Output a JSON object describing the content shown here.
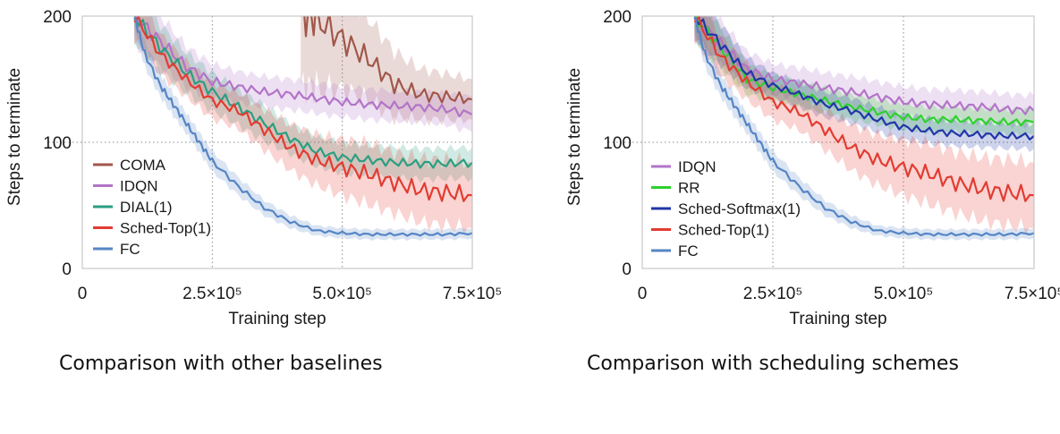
{
  "chart_data": [
    {
      "type": "line",
      "xlabel": "Training step",
      "ylabel": "Steps to terminate",
      "xlim": [
        0,
        750000
      ],
      "ylim": [
        0,
        200
      ],
      "xticks": [
        0,
        250000,
        500000,
        750000
      ],
      "xtick_labels": [
        "0",
        "2.5×10⁵",
        "5.0×10⁵",
        "7.5×10⁵"
      ],
      "yticks": [
        0,
        100,
        200
      ],
      "ytick_labels": [
        "0",
        "100",
        "200"
      ],
      "reference_lines": {
        "x": [
          250000,
          500000
        ],
        "y": [
          100
        ]
      },
      "legend_position": "lower-left",
      "shaded_confidence_band": true,
      "series": [
        {
          "name": "COMA",
          "color": "#a0574a",
          "x": [
            420000,
            450000,
            500000,
            550000,
            600000,
            650000,
            700000,
            750000
          ],
          "y": [
            200,
            198,
            182,
            166,
            146,
            138,
            136,
            134
          ],
          "band": [
            55,
            55,
            40,
            32,
            26,
            20,
            18,
            16
          ]
        },
        {
          "name": "IDQN",
          "color": "#b274c8",
          "x": [
            100000,
            150000,
            200000,
            250000,
            300000,
            350000,
            400000,
            450000,
            500000,
            550000,
            600000,
            650000,
            700000,
            750000
          ],
          "y": [
            200,
            180,
            160,
            148,
            144,
            140,
            138,
            135,
            132,
            130,
            129,
            128,
            126,
            122
          ],
          "band": [
            22,
            20,
            16,
            14,
            12,
            12,
            12,
            12,
            12,
            12,
            12,
            12,
            12,
            14
          ]
        },
        {
          "name": "DIAL(1)",
          "color": "#2a9f80",
          "x": [
            100000,
            150000,
            200000,
            250000,
            300000,
            350000,
            400000,
            450000,
            500000,
            550000,
            600000,
            650000,
            700000,
            750000
          ],
          "y": [
            200,
            175,
            155,
            140,
            128,
            115,
            103,
            93,
            88,
            86,
            84,
            83,
            83,
            84
          ],
          "band": [
            20,
            18,
            16,
            15,
            14,
            14,
            12,
            12,
            12,
            12,
            12,
            12,
            12,
            12
          ]
        },
        {
          "name": "Sched-Top(1)",
          "color": "#e23c32",
          "x": [
            100000,
            150000,
            200000,
            250000,
            300000,
            350000,
            400000,
            450000,
            500000,
            550000,
            600000,
            650000,
            700000,
            750000
          ],
          "y": [
            200,
            170,
            150,
            133,
            125,
            110,
            96,
            86,
            80,
            75,
            68,
            62,
            60,
            58
          ],
          "band": [
            18,
            16,
            14,
            14,
            14,
            16,
            18,
            20,
            22,
            24,
            24,
            25,
            26,
            26
          ]
        },
        {
          "name": "FC",
          "color": "#5585c5",
          "x": [
            100000,
            120000,
            150000,
            175000,
            200000,
            225000,
            250000,
            300000,
            350000,
            400000,
            450000,
            500000,
            550000,
            600000,
            650000,
            700000,
            750000
          ],
          "y": [
            200,
            170,
            145,
            130,
            115,
            100,
            85,
            65,
            48,
            37,
            30,
            28,
            27,
            27,
            27,
            27,
            28
          ],
          "band": [
            10,
            10,
            9,
            9,
            8,
            8,
            8,
            7,
            6,
            5,
            4,
            4,
            4,
            4,
            4,
            4,
            4
          ]
        }
      ]
    },
    {
      "type": "line",
      "xlabel": "Training step",
      "ylabel": "Steps to terminate",
      "xlim": [
        0,
        750000
      ],
      "ylim": [
        0,
        200
      ],
      "xticks": [
        0,
        250000,
        500000,
        750000
      ],
      "xtick_labels": [
        "0",
        "2.5×10⁵",
        "5.0×10⁵",
        "7.5×10⁵"
      ],
      "yticks": [
        0,
        100,
        200
      ],
      "ytick_labels": [
        "0",
        "100",
        "200"
      ],
      "reference_lines": {
        "x": [
          250000,
          500000
        ],
        "y": [
          100
        ]
      },
      "legend_position": "lower-left",
      "shaded_confidence_band": true,
      "series": [
        {
          "name": "IDQN",
          "color": "#b274c8",
          "x": [
            100000,
            150000,
            200000,
            250000,
            300000,
            350000,
            400000,
            450000,
            500000,
            550000,
            600000,
            650000,
            700000,
            750000
          ],
          "y": [
            200,
            178,
            158,
            150,
            147,
            143,
            140,
            136,
            132,
            130,
            129,
            128,
            126,
            125
          ],
          "band": [
            20,
            18,
            14,
            12,
            12,
            12,
            12,
            12,
            12,
            12,
            12,
            12,
            12,
            12
          ]
        },
        {
          "name": "RR",
          "color": "#2ed12e",
          "x": [
            100000,
            150000,
            200000,
            250000,
            300000,
            350000,
            400000,
            450000,
            500000,
            550000,
            600000,
            650000,
            700000,
            750000
          ],
          "y": [
            200,
            175,
            150,
            143,
            138,
            133,
            128,
            124,
            120,
            118,
            118,
            117,
            116,
            116
          ],
          "band": [
            18,
            16,
            12,
            10,
            10,
            10,
            10,
            10,
            10,
            10,
            10,
            10,
            10,
            10
          ]
        },
        {
          "name": "Sched-Softmax(1)",
          "color": "#2236a8",
          "x": [
            100000,
            150000,
            200000,
            250000,
            300000,
            350000,
            400000,
            450000,
            500000,
            550000,
            600000,
            650000,
            700000,
            750000
          ],
          "y": [
            200,
            178,
            155,
            145,
            138,
            130,
            125,
            118,
            112,
            109,
            107,
            106,
            105,
            105
          ],
          "band": [
            18,
            16,
            12,
            10,
            10,
            10,
            10,
            10,
            10,
            10,
            10,
            10,
            10,
            10
          ]
        },
        {
          "name": "Sched-Top(1)",
          "color": "#e23c32",
          "x": [
            100000,
            150000,
            200000,
            250000,
            300000,
            350000,
            400000,
            450000,
            500000,
            550000,
            600000,
            650000,
            700000,
            750000
          ],
          "y": [
            200,
            168,
            148,
            132,
            124,
            110,
            96,
            86,
            80,
            75,
            68,
            63,
            60,
            58
          ],
          "band": [
            18,
            16,
            14,
            14,
            14,
            16,
            18,
            20,
            22,
            24,
            24,
            25,
            26,
            26
          ]
        },
        {
          "name": "FC",
          "color": "#5585c5",
          "x": [
            100000,
            120000,
            150000,
            175000,
            200000,
            225000,
            250000,
            300000,
            350000,
            400000,
            450000,
            500000,
            550000,
            600000,
            650000,
            700000,
            750000
          ],
          "y": [
            200,
            170,
            145,
            130,
            115,
            100,
            85,
            65,
            48,
            37,
            30,
            28,
            27,
            27,
            27,
            27,
            28
          ],
          "band": [
            10,
            10,
            9,
            9,
            8,
            8,
            8,
            7,
            6,
            5,
            4,
            4,
            4,
            4,
            4,
            4,
            4
          ]
        }
      ]
    }
  ],
  "captions": {
    "left": "Comparison with other baselines",
    "right": "Comparison with scheduling schemes"
  }
}
